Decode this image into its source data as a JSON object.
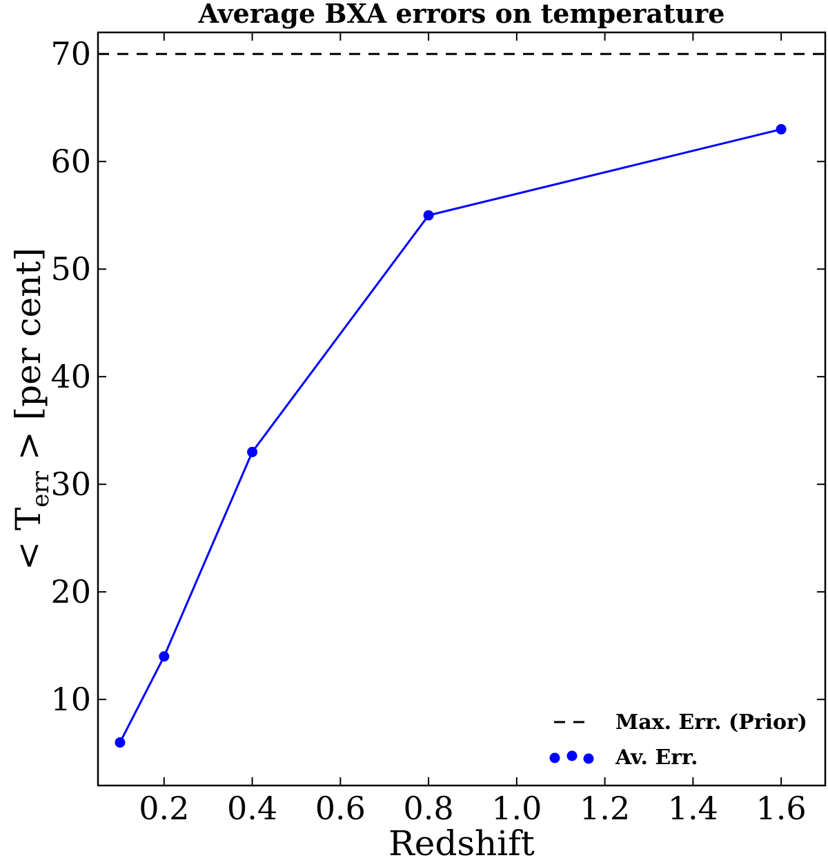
{
  "chart_data": {
    "type": "line",
    "title": "Average BXA errors on temperature",
    "xlabel": "Redshift",
    "ylabel": {
      "prefix": "< T",
      "subscript": "err",
      "suffix": " >  [per cent]"
    },
    "xlim": [
      0.05,
      1.7
    ],
    "ylim": [
      2,
      72
    ],
    "xticks": [
      0.2,
      0.4,
      0.6,
      0.8,
      1.0,
      1.2,
      1.4,
      1.6
    ],
    "xtick_labels": [
      "0.2",
      "0.4",
      "0.6",
      "0.8",
      "1.0",
      "1.2",
      "1.4",
      "1.6"
    ],
    "yticks": [
      10,
      20,
      30,
      40,
      50,
      60,
      70
    ],
    "ytick_labels": [
      "10",
      "20",
      "30",
      "40",
      "50",
      "60",
      "70"
    ],
    "grid": false,
    "legend_position": "bottom-right",
    "series": [
      {
        "name": "Av. Err.",
        "color": "#0000ff",
        "style": "solid line with circle markers",
        "x": [
          0.1,
          0.2,
          0.4,
          0.8,
          1.6
        ],
        "y": [
          6,
          14,
          33,
          55,
          63
        ]
      }
    ],
    "reference_lines": [
      {
        "name": "Max. Err. (Prior)",
        "orientation": "horizontal",
        "y": 70,
        "style": "dashed",
        "color": "#000000"
      }
    ]
  }
}
